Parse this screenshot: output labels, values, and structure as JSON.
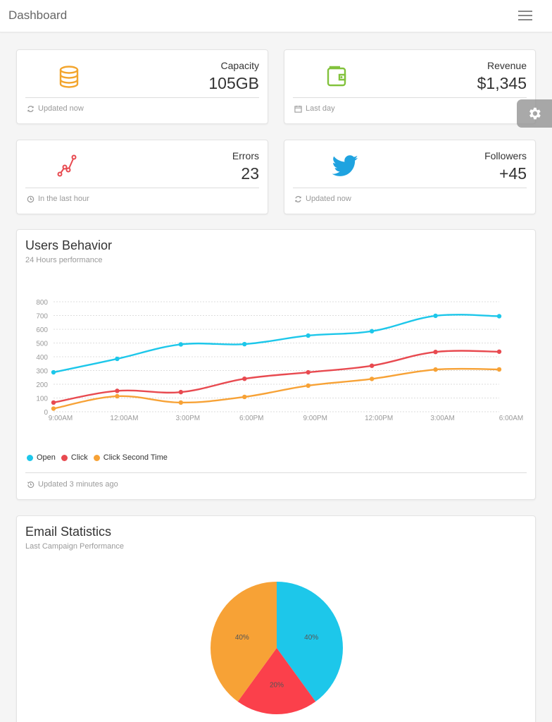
{
  "navbar": {
    "brand": "Dashboard",
    "menu_icon": "hamburger-icon"
  },
  "colors": {
    "capacity": "#f3a52d",
    "revenue": "#82c23c",
    "errors": "#e84a50",
    "followers": "#1fa3e0",
    "open": "#1dc7ea",
    "click": "#e84a50",
    "click_second": "#f7a236",
    "pie_red": "#fb404b"
  },
  "stats": [
    {
      "label": "Capacity",
      "value": "105GB",
      "footer": "Updated now",
      "icon": "database-icon",
      "footer_icon": "refresh-icon"
    },
    {
      "label": "Revenue",
      "value": "$1,345",
      "footer": "Last day",
      "icon": "wallet-icon",
      "footer_icon": "calendar-icon"
    },
    {
      "label": "Errors",
      "value": "23",
      "footer": "In the last hour",
      "icon": "line-chart-icon",
      "footer_icon": "clock-icon"
    },
    {
      "label": "Followers",
      "value": "+45",
      "footer": "Updated now",
      "icon": "twitter-icon",
      "footer_icon": "refresh-icon"
    }
  ],
  "settings": {
    "icon": "gear-icon"
  },
  "users_behavior": {
    "title": "Users Behavior",
    "subtitle": "24 Hours performance",
    "footer": "Updated 3 minutes ago",
    "footer_icon": "history-icon"
  },
  "email_stats": {
    "title": "Email Statistics",
    "subtitle": "Last Campaign Performance"
  },
  "chart_data": [
    {
      "type": "line",
      "x": [
        "9:00AM",
        "12:00AM",
        "3:00PM",
        "6:00PM",
        "9:00PM",
        "12:00PM",
        "3:00AM",
        "6:00AM"
      ],
      "yticks": [
        0,
        100,
        200,
        300,
        400,
        500,
        600,
        700,
        800
      ],
      "ylim": [
        0,
        800
      ],
      "grid": true,
      "legend_position": "bottom-left",
      "series": [
        {
          "name": "Open",
          "values": [
            287,
            385,
            490,
            492,
            554,
            586,
            698,
            695
          ]
        },
        {
          "name": "Click",
          "values": [
            67,
            152,
            143,
            240,
            287,
            335,
            435,
            437
          ]
        },
        {
          "name": "Click Second Time",
          "values": [
            23,
            113,
            67,
            108,
            190,
            239,
            307,
            308
          ]
        }
      ]
    },
    {
      "type": "pie",
      "slices": [
        {
          "label": "40%",
          "value": 40
        },
        {
          "label": "20%",
          "value": 20
        },
        {
          "label": "40%",
          "value": 40
        }
      ]
    }
  ]
}
